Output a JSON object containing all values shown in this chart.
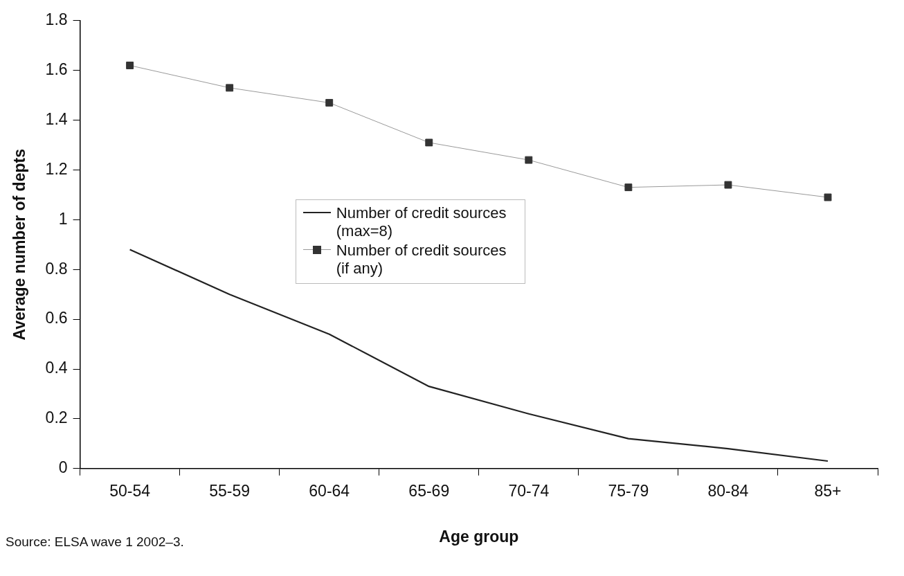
{
  "chart_data": {
    "type": "line",
    "xlabel": "Age group",
    "ylabel": "Average number of depts",
    "categories": [
      "50-54",
      "55-59",
      "60-64",
      "65-69",
      "70-74",
      "75-79",
      "80-84",
      "85+"
    ],
    "series": [
      {
        "name": "Number of credit sources (max=8)",
        "color": "#222222",
        "marker": "none",
        "values": [
          0.88,
          0.7,
          0.54,
          0.33,
          0.22,
          0.12,
          0.08,
          0.03
        ]
      },
      {
        "name": "Number of credit sources (if any)",
        "color": "#333333",
        "marker": "square",
        "values": [
          1.62,
          1.53,
          1.47,
          1.31,
          1.24,
          1.13,
          1.14,
          1.09
        ]
      }
    ],
    "ylim": [
      0,
      1.8
    ],
    "yticks": [
      0,
      0.2,
      0.4,
      0.6,
      0.8,
      1,
      1.2,
      1.4,
      1.6,
      1.8
    ],
    "grid": false,
    "legend": "center",
    "annotations": [
      "Source: ELSA wave 1 2002–3."
    ]
  }
}
